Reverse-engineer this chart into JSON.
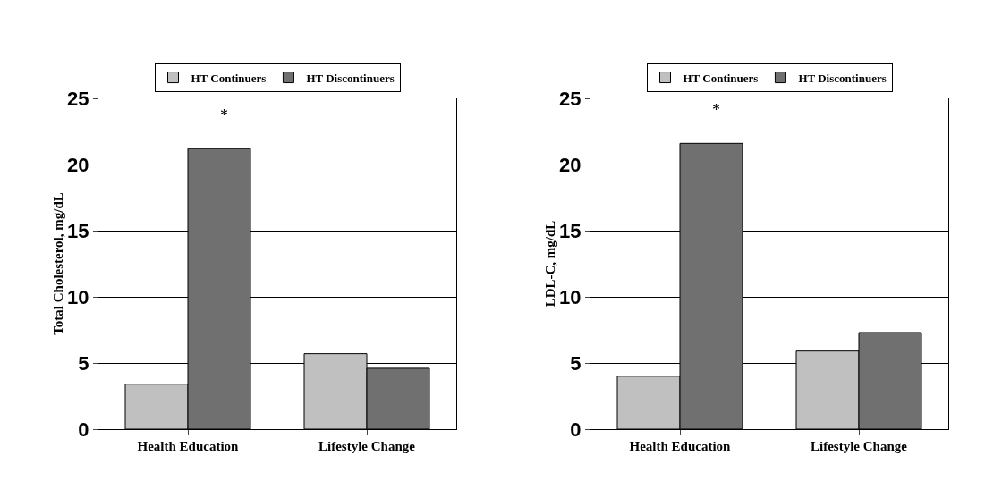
{
  "chart_data": [
    {
      "type": "bar",
      "ylabel": "Total Cholesterol, mg/dL",
      "categories": [
        "Health Education",
        "Lifestyle Change"
      ],
      "series": [
        {
          "name": "HT Continuers",
          "color": "#c0c0c0",
          "values": [
            3.4,
            5.7
          ]
        },
        {
          "name": "HT Discontinuers",
          "color": "#707070",
          "values": [
            21.2,
            4.6
          ]
        }
      ],
      "ylim": [
        0,
        25
      ],
      "yticks": [
        0,
        5,
        10,
        15,
        20,
        25
      ],
      "grid": "y",
      "legend": "top",
      "annotations": [
        {
          "text": "*",
          "x": "Health Education",
          "y": 21.2
        }
      ]
    },
    {
      "type": "bar",
      "ylabel": "LDL-C, mg/dL",
      "categories": [
        "Health Education",
        "Lifestyle Change"
      ],
      "series": [
        {
          "name": "HT Continuers",
          "color": "#c0c0c0",
          "values": [
            4.0,
            5.9
          ]
        },
        {
          "name": "HT Discontinuers",
          "color": "#707070",
          "values": [
            21.6,
            7.3
          ]
        }
      ],
      "ylim": [
        0,
        25
      ],
      "yticks": [
        0,
        5,
        10,
        15,
        20,
        25
      ],
      "grid": "y",
      "legend": "top",
      "annotations": [
        {
          "text": "*",
          "x": "Health Education",
          "y": 21.6
        }
      ]
    }
  ]
}
